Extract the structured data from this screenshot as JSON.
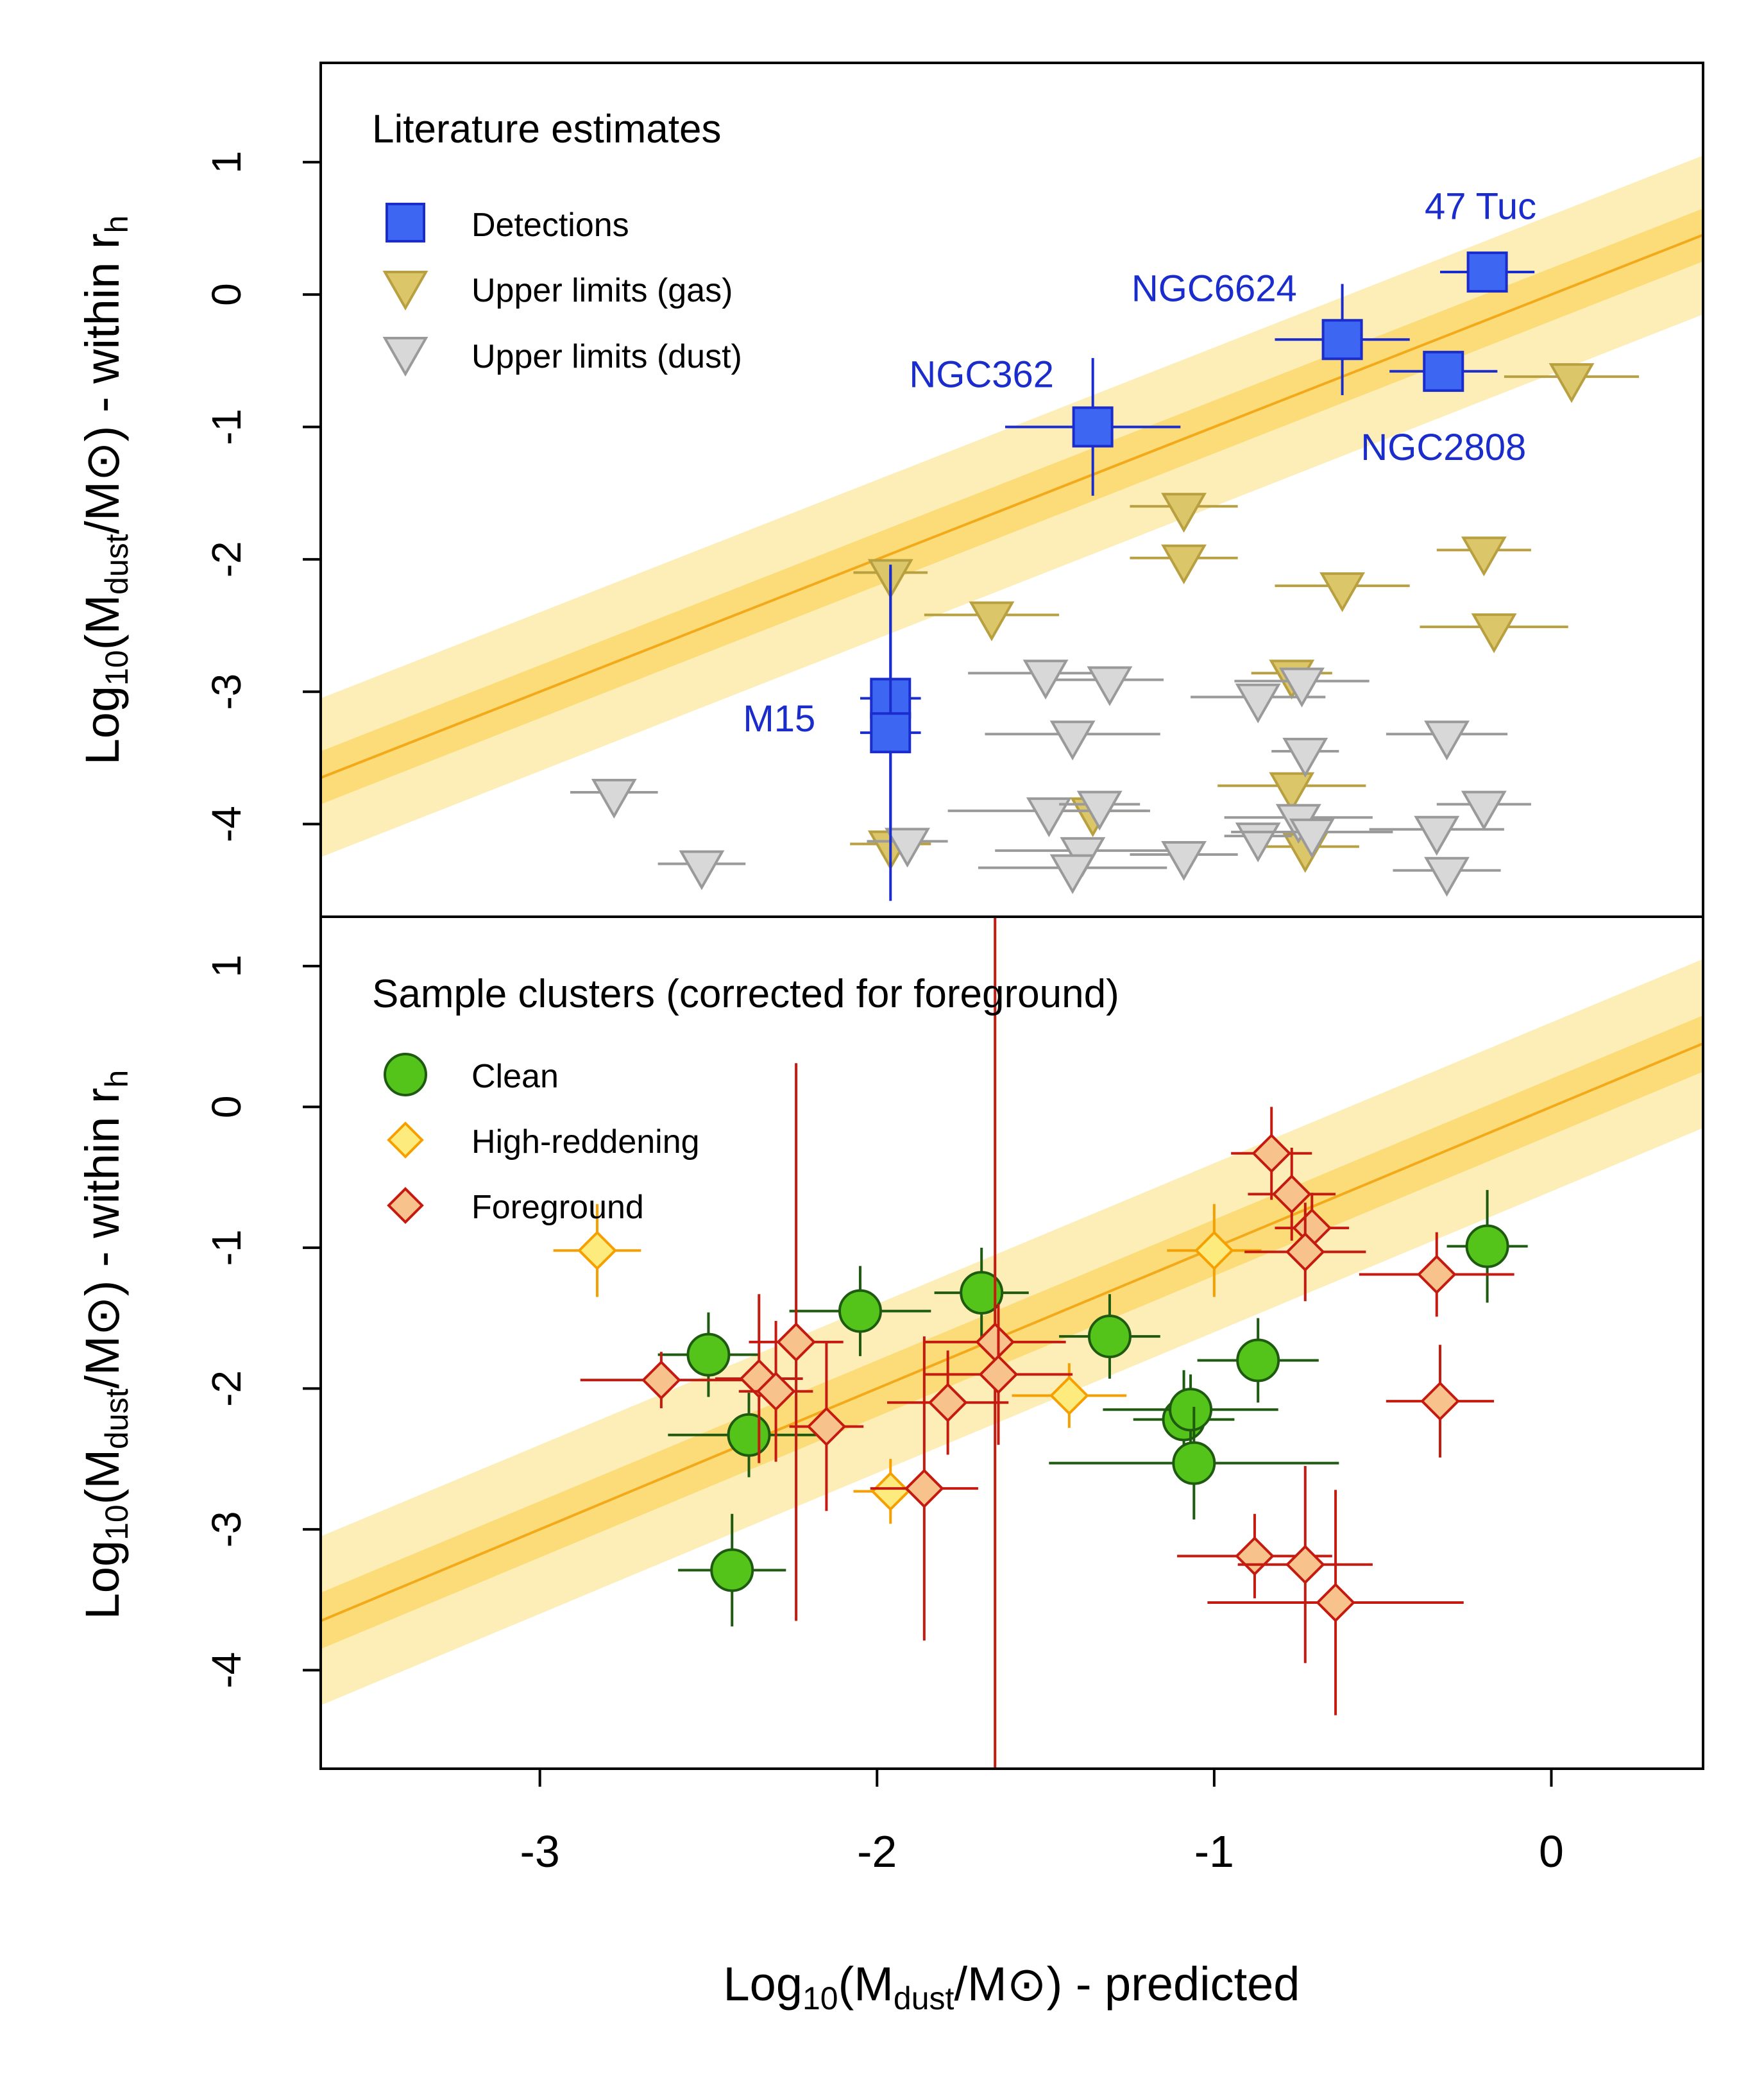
{
  "chart_data": {
    "type": "scatter",
    "xlabel": "Log10(Mdust/M⊙) - predicted",
    "xlabel_parts": {
      "a": "Log",
      "b": "10",
      "c": "(M",
      "d": "dust",
      "e": "/M⊙) - predicted"
    },
    "ylabel_parts": {
      "a": "Log",
      "b": "10",
      "c": "(M",
      "d": "dust",
      "e": "/M⊙) - within r",
      "f": "h"
    },
    "xlim": [
      -3.65,
      0.45
    ],
    "x_ticks": [
      -3,
      -2,
      -1,
      0
    ],
    "x_tick_labels": [
      "-3",
      "-2",
      "-1",
      "0"
    ],
    "colors": {
      "band_outer": "#fdeeb7",
      "band_inner": "#fcdc78",
      "fit_line": "#f2a91a",
      "detection_fill": "#3d66f2",
      "detection_edge": "#1a2ccc",
      "gas_fill": "#dcc66a",
      "gas_edge": "#b8a040",
      "dust_fill": "#d8d8d8",
      "dust_edge": "#9a9a9a",
      "clean_fill": "#55c41a",
      "clean_edge": "#1e5a10",
      "highred_fill": "#feeb7d",
      "highred_edge": "#f5a000",
      "fg_fill": "#f8c28c",
      "fg_edge": "#c41a10"
    },
    "fit": {
      "slope": 1.0,
      "intercept": 0.0,
      "x_range": [
        -3.65,
        0.45
      ],
      "inner_halfwidth": 0.2,
      "outer_halfwidth": 0.6
    },
    "panels": [
      {
        "name": "Literature estimates",
        "title": "Literature estimates",
        "ylim": [
          -4.7,
          1.75
        ],
        "y_ticks": [
          -4,
          -3,
          -2,
          -1,
          0,
          1
        ],
        "y_tick_labels": [
          "-4",
          "-3",
          "-2",
          "-1",
          "0",
          "1"
        ],
        "legend": [
          "Detections",
          "Upper limits (gas)",
          "Upper limits (dust)"
        ],
        "series": [
          {
            "name": "Detections",
            "marker": "square",
            "points": [
              {
                "x": -0.19,
                "y": 0.17,
                "xerr": 0.14,
                "yerr": 0
              },
              {
                "x": -0.62,
                "y": -0.34,
                "xerr": 0.2,
                "yerr": 0.42
              },
              {
                "x": -0.32,
                "y": -0.58,
                "xerr": 0.16,
                "yerr": 0
              },
              {
                "x": -1.36,
                "y": -1.0,
                "xerr": 0.26,
                "yerr": 0.52
              },
              {
                "x": -1.96,
                "y": -3.05,
                "xerr": 0.09,
                "yerr": 0.98
              },
              {
                "x": -1.96,
                "y": -3.31,
                "xerr": 0.09,
                "yerr": 1.27
              }
            ]
          },
          {
            "name": "Upper limits (gas)",
            "marker": "triangle-down",
            "points": [
              {
                "x": 0.06,
                "y": -0.62,
                "xerr": 0.2
              },
              {
                "x": -1.09,
                "y": -1.6,
                "xerr": 0.16
              },
              {
                "x": -1.09,
                "y": -1.99,
                "xerr": 0.16
              },
              {
                "x": -0.2,
                "y": -1.93,
                "xerr": 0.14
              },
              {
                "x": -0.62,
                "y": -2.2,
                "xerr": 0.2
              },
              {
                "x": -1.96,
                "y": -2.1,
                "xerr": 0.11
              },
              {
                "x": -1.66,
                "y": -2.42,
                "xerr": 0.2
              },
              {
                "x": -0.17,
                "y": -2.51,
                "xerr": 0.22
              },
              {
                "x": -0.77,
                "y": -2.86,
                "xerr": 0.12
              },
              {
                "x": -0.77,
                "y": -3.71,
                "xerr": 0.22
              },
              {
                "x": -1.36,
                "y": -3.9,
                "xerr": 0.16
              },
              {
                "x": -1.96,
                "y": -4.15,
                "xerr": 0.12
              },
              {
                "x": -0.73,
                "y": -4.17,
                "xerr": 0.16
              }
            ]
          },
          {
            "name": "Upper limits (dust)",
            "marker": "triangle-down",
            "points": [
              {
                "x": -2.78,
                "y": -3.76,
                "xerr": 0.13
              },
              {
                "x": -2.52,
                "y": -4.3,
                "xerr": 0.13
              },
              {
                "x": -1.5,
                "y": -2.86,
                "xerr": 0.23
              },
              {
                "x": -1.31,
                "y": -2.91,
                "xerr": 0.16
              },
              {
                "x": -0.87,
                "y": -3.04,
                "xerr": 0.2
              },
              {
                "x": -0.74,
                "y": -2.92,
                "xerr": 0.2
              },
              {
                "x": -1.42,
                "y": -3.32,
                "xerr": 0.26
              },
              {
                "x": -0.73,
                "y": -3.45,
                "xerr": 0.1
              },
              {
                "x": -0.31,
                "y": -3.32,
                "xerr": 0.18
              },
              {
                "x": -1.49,
                "y": -3.9,
                "xerr": 0.3
              },
              {
                "x": -1.34,
                "y": -3.85,
                "xerr": 0.12
              },
              {
                "x": -0.75,
                "y": -3.95,
                "xerr": 0.22
              },
              {
                "x": -0.2,
                "y": -3.85,
                "xerr": 0.14
              },
              {
                "x": -0.34,
                "y": -4.04,
                "xerr": 0.2
              },
              {
                "x": -0.87,
                "y": -4.09,
                "xerr": 0.1
              },
              {
                "x": -0.71,
                "y": -4.06,
                "xerr": 0.24
              },
              {
                "x": -1.91,
                "y": -4.13,
                "xerr": 0.12
              },
              {
                "x": -1.39,
                "y": -4.2,
                "xerr": 0.26
              },
              {
                "x": -1.42,
                "y": -4.33,
                "xerr": 0.28
              },
              {
                "x": -1.09,
                "y": -4.23,
                "xerr": 0.16
              },
              {
                "x": -0.31,
                "y": -4.35,
                "xerr": 0.16
              }
            ]
          }
        ],
        "annotations": [
          {
            "text": "47 Tuc",
            "x": -0.21,
            "y": 0.57
          },
          {
            "text": "NGC6624",
            "x": -1.0,
            "y": -0.05
          },
          {
            "text": "NGC362",
            "x": -1.69,
            "y": -0.7
          },
          {
            "text": "NGC2808",
            "x": -0.32,
            "y": -1.25
          },
          {
            "text": "M15",
            "x": -2.29,
            "y": -3.3
          }
        ]
      },
      {
        "name": "Sample clusters (corrected for foreground)",
        "title": "Sample clusters (corrected for foreground)",
        "ylim": [
          -4.7,
          1.35
        ],
        "y_ticks": [
          -4,
          -3,
          -2,
          -1,
          0,
          1
        ],
        "y_tick_labels": [
          "-4",
          "-3",
          "-2",
          "-1",
          "0",
          "1"
        ],
        "legend": [
          "Clean",
          "High-reddening",
          "Foreground"
        ],
        "series": [
          {
            "name": "Clean",
            "marker": "circle",
            "points": [
              {
                "x": -0.19,
                "y": -0.99,
                "xerr": 0.12,
                "yerr": 0.4
              },
              {
                "x": -1.69,
                "y": -1.32,
                "xerr": 0.14,
                "yerr": 0.32
              },
              {
                "x": -2.05,
                "y": -1.45,
                "xerr": 0.21,
                "yerr": 0.32
              },
              {
                "x": -1.31,
                "y": -1.63,
                "xerr": 0.15,
                "yerr": 0.3
              },
              {
                "x": -0.87,
                "y": -1.8,
                "xerr": 0.18,
                "yerr": 0.3
              },
              {
                "x": -2.5,
                "y": -1.76,
                "xerr": 0.15,
                "yerr": 0.3
              },
              {
                "x": -1.09,
                "y": -2.22,
                "xerr": 0.15,
                "yerr": 0.35
              },
              {
                "x": -1.07,
                "y": -2.15,
                "xerr": 0.26,
                "yerr": 0.25
              },
              {
                "x": -2.38,
                "y": -2.33,
                "xerr": 0.24,
                "yerr": 0.3
              },
              {
                "x": -1.06,
                "y": -2.53,
                "xerr": 0.43,
                "yerr": 0.4
              },
              {
                "x": -2.43,
                "y": -3.29,
                "xerr": 0.16,
                "yerr": 0.4
              }
            ]
          },
          {
            "name": "High-reddening",
            "marker": "diamond",
            "points": [
              {
                "x": -2.83,
                "y": -1.02,
                "xerr": 0.13,
                "yerr": 0.33
              },
              {
                "x": -1.0,
                "y": -1.02,
                "xerr": 0.14,
                "yerr": 0.33
              },
              {
                "x": -1.43,
                "y": -2.05,
                "xerr": 0.17,
                "yerr": 0.23
              },
              {
                "x": -1.96,
                "y": -2.73,
                "xerr": 0.11,
                "yerr": 0.23
              }
            ]
          },
          {
            "name": "Foreground",
            "marker": "diamond",
            "points": [
              {
                "x": -0.83,
                "y": -0.33,
                "xerr": 0.12,
                "yerr": 0.33
              },
              {
                "x": -0.77,
                "y": -0.62,
                "xerr": 0.13,
                "yerr": 0.33
              },
              {
                "x": -0.71,
                "y": -0.86,
                "xerr": 0.11,
                "yerr": 0.25
              },
              {
                "x": -0.73,
                "y": -1.03,
                "xerr": 0.18,
                "yerr": 0.35
              },
              {
                "x": -0.34,
                "y": -1.19,
                "xerr": 0.23,
                "yerr": 0.3
              },
              {
                "x": -0.33,
                "y": -2.09,
                "xerr": 0.16,
                "yerr": 0.4
              },
              {
                "x": -2.24,
                "y": -1.67,
                "xerr": 0.14,
                "yerr": 1.98
              },
              {
                "x": -2.35,
                "y": -1.93,
                "xerr": 0.13,
                "yerr": 0.6
              },
              {
                "x": -2.3,
                "y": -2.02,
                "xerr": 0.11,
                "yerr": 0.5
              },
              {
                "x": -2.15,
                "y": -2.27,
                "xerr": 0.11,
                "yerr": 0.6
              },
              {
                "x": -2.64,
                "y": -1.94,
                "xerr": 0.24,
                "yerr": 0.2
              },
              {
                "x": -1.65,
                "y": -1.67,
                "xerr": 0.21,
                "yerr": 3.05
              },
              {
                "x": -1.64,
                "y": -1.9,
                "xerr": 0.22,
                "yerr": 0.5
              },
              {
                "x": -1.79,
                "y": -2.1,
                "xerr": 0.18,
                "yerr": 0.37
              },
              {
                "x": -1.86,
                "y": -2.71,
                "xerr": 0.16,
                "yerr": 1.08
              },
              {
                "x": -0.88,
                "y": -3.19,
                "xerr": 0.23,
                "yerr": 0.3
              },
              {
                "x": -0.73,
                "y": -3.25,
                "xerr": 0.2,
                "yerr": 0.7
              },
              {
                "x": -0.64,
                "y": -3.52,
                "xerr": 0.38,
                "yerr": 0.8
              }
            ]
          }
        ],
        "annotations": []
      }
    ]
  }
}
